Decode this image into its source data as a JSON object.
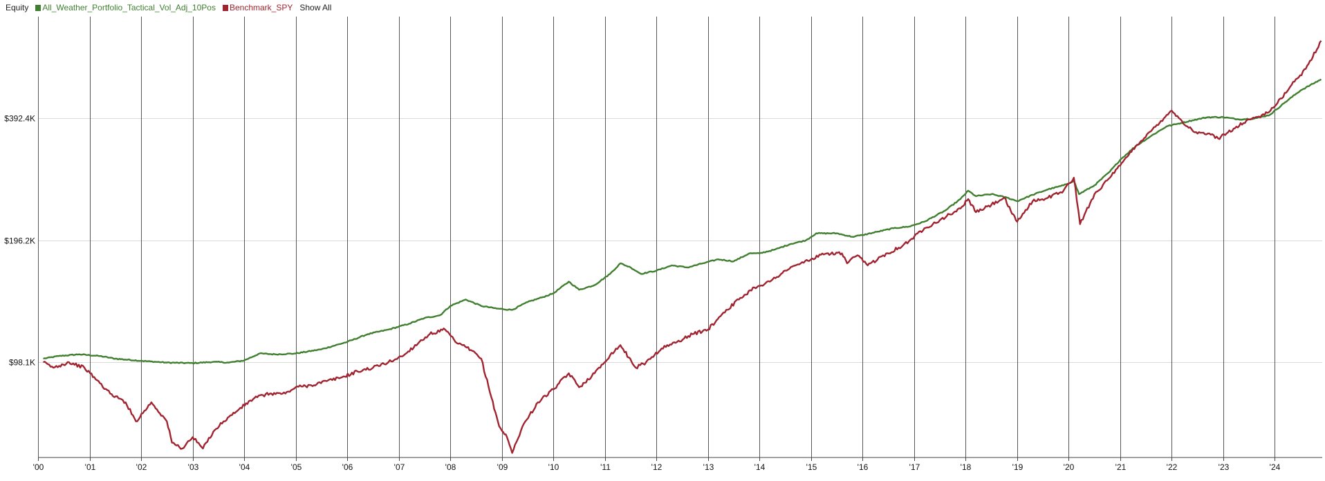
{
  "legend": {
    "title": "Equity",
    "show_all": "Show All"
  },
  "chart_data": {
    "type": "line",
    "title": "Equity",
    "xlabel": "",
    "ylabel": "",
    "y_scale": "log",
    "ylim": [
      57000,
      700000
    ],
    "xlim": [
      2000.0,
      2024.92
    ],
    "grid": {
      "vertical": true,
      "horizontal": true
    },
    "legend_position": "top-left",
    "x_ticks": [
      {
        "value": 2000,
        "label": "'00"
      },
      {
        "value": 2001,
        "label": "'01"
      },
      {
        "value": 2002,
        "label": "'02"
      },
      {
        "value": 2003,
        "label": "'03"
      },
      {
        "value": 2004,
        "label": "'04"
      },
      {
        "value": 2005,
        "label": "'05"
      },
      {
        "value": 2006,
        "label": "'06"
      },
      {
        "value": 2007,
        "label": "'07"
      },
      {
        "value": 2008,
        "label": "'08"
      },
      {
        "value": 2009,
        "label": "'09"
      },
      {
        "value": 2010,
        "label": "'10"
      },
      {
        "value": 2011,
        "label": "'11"
      },
      {
        "value": 2012,
        "label": "'12"
      },
      {
        "value": 2013,
        "label": "'13"
      },
      {
        "value": 2014,
        "label": "'14"
      },
      {
        "value": 2015,
        "label": "'15"
      },
      {
        "value": 2016,
        "label": "'16"
      },
      {
        "value": 2017,
        "label": "'17"
      },
      {
        "value": 2018,
        "label": "'18"
      },
      {
        "value": 2019,
        "label": "'19"
      },
      {
        "value": 2020,
        "label": "'20"
      },
      {
        "value": 2021,
        "label": "'21"
      },
      {
        "value": 2022,
        "label": "'22"
      },
      {
        "value": 2023,
        "label": "'23"
      },
      {
        "value": 2024,
        "label": "'24"
      }
    ],
    "y_ticks": [
      {
        "value": 98100,
        "label": "$98.1K"
      },
      {
        "value": 196200,
        "label": "$196.2K"
      },
      {
        "value": 392400,
        "label": "$392.4K"
      }
    ],
    "series": [
      {
        "name": "All_Weather_Portfolio_Tactical_Vol_Adj_10Pos",
        "color": "#3f7f2f",
        "points": [
          [
            2000.1,
            100000
          ],
          [
            2000.4,
            101500
          ],
          [
            2000.8,
            102500
          ],
          [
            2001.2,
            101500
          ],
          [
            2001.5,
            100000
          ],
          [
            2002.0,
            98800
          ],
          [
            2002.5,
            97800
          ],
          [
            2003.0,
            97500
          ],
          [
            2003.4,
            98200
          ],
          [
            2003.7,
            97800
          ],
          [
            2004.0,
            99000
          ],
          [
            2004.3,
            103000
          ],
          [
            2004.6,
            102500
          ],
          [
            2005.0,
            103000
          ],
          [
            2005.5,
            105500
          ],
          [
            2006.0,
            110000
          ],
          [
            2006.4,
            115000
          ],
          [
            2006.8,
            118000
          ],
          [
            2007.2,
            122000
          ],
          [
            2007.5,
            126000
          ],
          [
            2007.8,
            128000
          ],
          [
            2008.0,
            135000
          ],
          [
            2008.3,
            140000
          ],
          [
            2008.6,
            135000
          ],
          [
            2008.9,
            133000
          ],
          [
            2009.2,
            132000
          ],
          [
            2009.5,
            138000
          ],
          [
            2009.8,
            142000
          ],
          [
            2010.0,
            145000
          ],
          [
            2010.3,
            155000
          ],
          [
            2010.5,
            148000
          ],
          [
            2010.8,
            152000
          ],
          [
            2011.1,
            162000
          ],
          [
            2011.3,
            172000
          ],
          [
            2011.5,
            168000
          ],
          [
            2011.7,
            162000
          ],
          [
            2012.0,
            165000
          ],
          [
            2012.3,
            170000
          ],
          [
            2012.6,
            168000
          ],
          [
            2012.9,
            172000
          ],
          [
            2013.2,
            176000
          ],
          [
            2013.5,
            174000
          ],
          [
            2013.8,
            182000
          ],
          [
            2014.0,
            182000
          ],
          [
            2014.3,
            186000
          ],
          [
            2014.6,
            192000
          ],
          [
            2014.9,
            196000
          ],
          [
            2015.1,
            204000
          ],
          [
            2015.5,
            204000
          ],
          [
            2015.8,
            200000
          ],
          [
            2016.0,
            202000
          ],
          [
            2016.3,
            206000
          ],
          [
            2016.6,
            210000
          ],
          [
            2016.9,
            212000
          ],
          [
            2017.2,
            218000
          ],
          [
            2017.6,
            232000
          ],
          [
            2017.9,
            248000
          ],
          [
            2018.05,
            260000
          ],
          [
            2018.2,
            252000
          ],
          [
            2018.5,
            255000
          ],
          [
            2018.8,
            250000
          ],
          [
            2019.0,
            245000
          ],
          [
            2019.3,
            254000
          ],
          [
            2019.6,
            262000
          ],
          [
            2019.9,
            268000
          ],
          [
            2020.1,
            275000
          ],
          [
            2020.2,
            255000
          ],
          [
            2020.5,
            268000
          ],
          [
            2020.8,
            290000
          ],
          [
            2021.0,
            310000
          ],
          [
            2021.3,
            335000
          ],
          [
            2021.6,
            355000
          ],
          [
            2021.9,
            375000
          ],
          [
            2022.1,
            380000
          ],
          [
            2022.4,
            388000
          ],
          [
            2022.7,
            395000
          ],
          [
            2023.0,
            395000
          ],
          [
            2023.3,
            390000
          ],
          [
            2023.6,
            392000
          ],
          [
            2023.9,
            400000
          ],
          [
            2024.2,
            430000
          ],
          [
            2024.5,
            460000
          ],
          [
            2024.9,
            490000
          ]
        ]
      },
      {
        "name": "Benchmark_SPY",
        "color": "#a0232f",
        "points": [
          [
            2000.1,
            98000
          ],
          [
            2000.3,
            95000
          ],
          [
            2000.6,
            98000
          ],
          [
            2000.9,
            95000
          ],
          [
            2001.2,
            87000
          ],
          [
            2001.4,
            82000
          ],
          [
            2001.7,
            78000
          ],
          [
            2001.9,
            70000
          ],
          [
            2002.2,
            78000
          ],
          [
            2002.5,
            70000
          ],
          [
            2002.6,
            62000
          ],
          [
            2002.8,
            60000
          ],
          [
            2003.0,
            64000
          ],
          [
            2003.2,
            60000
          ],
          [
            2003.4,
            66000
          ],
          [
            2003.6,
            70000
          ],
          [
            2003.9,
            75000
          ],
          [
            2004.2,
            80000
          ],
          [
            2004.5,
            82000
          ],
          [
            2004.8,
            82000
          ],
          [
            2005.0,
            85000
          ],
          [
            2005.3,
            86000
          ],
          [
            2005.6,
            88000
          ],
          [
            2005.9,
            90000
          ],
          [
            2006.2,
            93000
          ],
          [
            2006.5,
            95000
          ],
          [
            2006.8,
            98000
          ],
          [
            2007.1,
            102000
          ],
          [
            2007.4,
            110000
          ],
          [
            2007.6,
            115000
          ],
          [
            2007.9,
            118000
          ],
          [
            2008.1,
            110000
          ],
          [
            2008.4,
            105000
          ],
          [
            2008.6,
            100000
          ],
          [
            2008.8,
            80000
          ],
          [
            2008.95,
            68000
          ],
          [
            2009.1,
            64000
          ],
          [
            2009.2,
            58500
          ],
          [
            2009.4,
            68000
          ],
          [
            2009.7,
            78000
          ],
          [
            2010.0,
            84000
          ],
          [
            2010.3,
            92000
          ],
          [
            2010.5,
            85000
          ],
          [
            2010.8,
            92000
          ],
          [
            2011.1,
            102000
          ],
          [
            2011.3,
            108000
          ],
          [
            2011.6,
            95000
          ],
          [
            2011.8,
            98000
          ],
          [
            2012.1,
            106000
          ],
          [
            2012.4,
            110000
          ],
          [
            2012.7,
            115000
          ],
          [
            2013.0,
            118000
          ],
          [
            2013.3,
            130000
          ],
          [
            2013.6,
            140000
          ],
          [
            2013.9,
            150000
          ],
          [
            2014.2,
            155000
          ],
          [
            2014.5,
            165000
          ],
          [
            2014.8,
            172000
          ],
          [
            2015.0,
            176000
          ],
          [
            2015.3,
            182000
          ],
          [
            2015.6,
            182000
          ],
          [
            2015.7,
            172000
          ],
          [
            2015.9,
            180000
          ],
          [
            2016.1,
            170000
          ],
          [
            2016.4,
            180000
          ],
          [
            2016.7,
            188000
          ],
          [
            2016.9,
            195000
          ],
          [
            2017.2,
            210000
          ],
          [
            2017.5,
            220000
          ],
          [
            2017.9,
            235000
          ],
          [
            2018.05,
            248000
          ],
          [
            2018.2,
            230000
          ],
          [
            2018.5,
            240000
          ],
          [
            2018.75,
            250000
          ],
          [
            2018.9,
            228000
          ],
          [
            2019.0,
            218000
          ],
          [
            2019.3,
            245000
          ],
          [
            2019.6,
            250000
          ],
          [
            2019.9,
            260000
          ],
          [
            2020.1,
            280000
          ],
          [
            2020.22,
            215000
          ],
          [
            2020.5,
            255000
          ],
          [
            2020.8,
            280000
          ],
          [
            2021.0,
            300000
          ],
          [
            2021.3,
            335000
          ],
          [
            2021.6,
            365000
          ],
          [
            2021.9,
            400000
          ],
          [
            2022.0,
            410000
          ],
          [
            2022.3,
            375000
          ],
          [
            2022.5,
            360000
          ],
          [
            2022.7,
            360000
          ],
          [
            2022.9,
            350000
          ],
          [
            2023.2,
            370000
          ],
          [
            2023.5,
            390000
          ],
          [
            2023.8,
            400000
          ],
          [
            2024.0,
            420000
          ],
          [
            2024.3,
            470000
          ],
          [
            2024.6,
            520000
          ],
          [
            2024.9,
            610000
          ]
        ]
      }
    ]
  }
}
